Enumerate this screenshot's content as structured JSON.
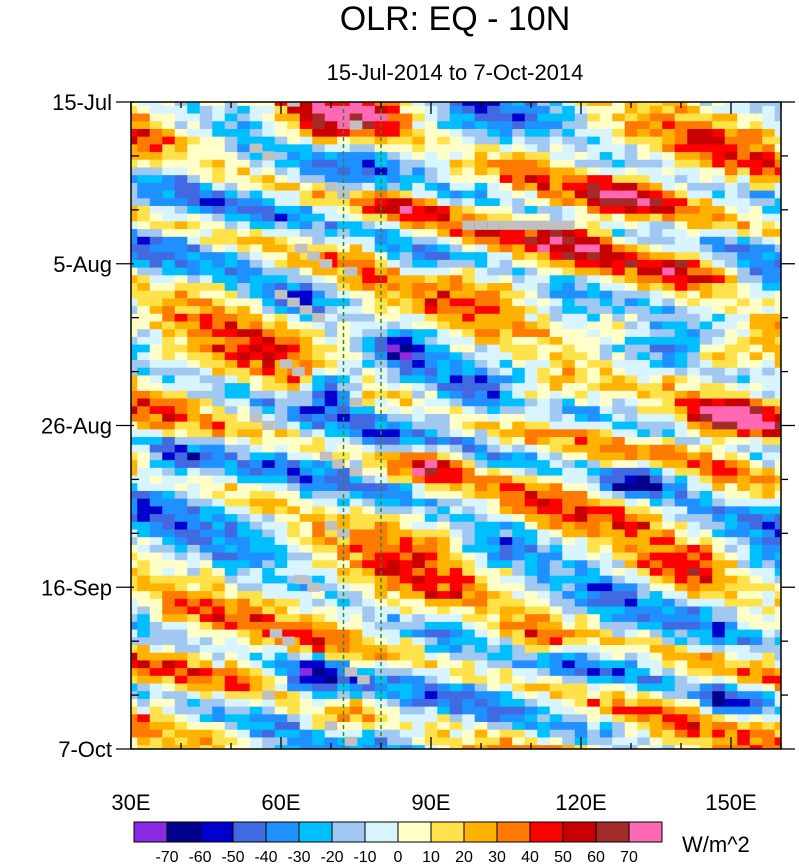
{
  "chart_data": {
    "type": "heatmap",
    "title": "OLR: EQ - 10N",
    "subtitle": "15-Jul-2014 to 7-Oct-2014",
    "x_axis": {
      "range": [
        30,
        160
      ],
      "ticks": [
        {
          "value": 30,
          "label": "30E"
        },
        {
          "value": 60,
          "label": "60E"
        },
        {
          "value": 90,
          "label": "90E"
        },
        {
          "value": 120,
          "label": "120E"
        },
        {
          "value": 150,
          "label": "150E"
        }
      ],
      "minor_step": 10
    },
    "y_axis": {
      "range_days": [
        0,
        84
      ],
      "direction": "time increases downward",
      "ticks": [
        {
          "day": 0,
          "label": "15-Jul"
        },
        {
          "day": 21,
          "label": "5-Aug"
        },
        {
          "day": 42,
          "label": "26-Aug"
        },
        {
          "day": 63,
          "label": "16-Sep"
        },
        {
          "day": 84,
          "label": "7-Oct"
        }
      ],
      "minor_step_days": 7
    },
    "reference_lines": [
      {
        "lon": 72.5,
        "style": "dashed",
        "color": "#2e8b2e"
      },
      {
        "lon": 80,
        "style": "dashed",
        "color": "#2e8b2e"
      }
    ],
    "colorbar": {
      "units": "W/m^2",
      "levels": [
        -70,
        -60,
        -50,
        -40,
        -30,
        -20,
        -10,
        0,
        10,
        20,
        30,
        40,
        50,
        60,
        70
      ],
      "colors": [
        "#8a2be2",
        "#00008b",
        "#0000cd",
        "#4169e1",
        "#1e90ff",
        "#00bfff",
        "#a0c8f0",
        "#d8f4ff",
        "#ffffc8",
        "#ffe14a",
        "#ffb300",
        "#ff7a00",
        "#ff0000",
        "#c80000",
        "#a52a2a",
        "#ff69b4"
      ]
    },
    "missing_color": "#c0c0c0",
    "field": {
      "lon_start": 30,
      "lon_step": 2.5,
      "n_lon": 53,
      "day_start": 0,
      "day_step": 1,
      "n_days": 85,
      "features": [
        {
          "day": 2,
          "lon": 76,
          "value": 55,
          "day_width": 4,
          "lon_width": 12
        },
        {
          "day": 3,
          "lon": 66,
          "value": 38,
          "day_width": 4,
          "lon_width": 10
        },
        {
          "day": 6,
          "lon": 112,
          "value": 30,
          "day_width": 3,
          "lon_width": 10
        },
        {
          "day": 13,
          "lon": 85,
          "value": 45,
          "day_width": 3,
          "lon_width": 10
        },
        {
          "day": 9,
          "lon": 40,
          "value": -30,
          "day_width": 3,
          "lon_width": 8
        },
        {
          "day": 12,
          "lon": 128,
          "value": 35,
          "day_width": 3,
          "lon_width": 10
        },
        {
          "day": 21,
          "lon": 88,
          "value": -50,
          "day_width": 3,
          "lon_width": 8
        },
        {
          "day": 22,
          "lon": 140,
          "value": 45,
          "day_width": 4,
          "lon_width": 14
        },
        {
          "day": 19,
          "lon": 118,
          "value": 30,
          "day_width": 4,
          "lon_width": 10
        },
        {
          "day": 26,
          "lon": 64,
          "value": -35,
          "day_width": 3,
          "lon_width": 10
        },
        {
          "day": 29,
          "lon": 128,
          "value": 40,
          "day_width": 3,
          "lon_width": 12
        },
        {
          "day": 32,
          "lon": 84,
          "value": -50,
          "day_width": 3,
          "lon_width": 6
        },
        {
          "day": 33,
          "lon": 148,
          "value": 50,
          "day_width": 3,
          "lon_width": 10
        },
        {
          "day": 37,
          "lon": 70,
          "value": -75,
          "day_width": 3,
          "lon_width": 6
        },
        {
          "day": 38,
          "lon": 112,
          "value": 45,
          "day_width": 3,
          "lon_width": 10
        },
        {
          "day": 41,
          "lon": 150,
          "value": 50,
          "day_width": 3,
          "lon_width": 10
        },
        {
          "day": 47,
          "lon": 90,
          "value": 55,
          "day_width": 3,
          "lon_width": 8
        },
        {
          "day": 49,
          "lon": 132,
          "value": -65,
          "day_width": 3,
          "lon_width": 10
        },
        {
          "day": 47,
          "lon": 38,
          "value": -35,
          "day_width": 3,
          "lon_width": 8
        },
        {
          "day": 58,
          "lon": 104,
          "value": -40,
          "day_width": 3,
          "lon_width": 10
        },
        {
          "day": 61,
          "lon": 140,
          "value": 45,
          "day_width": 4,
          "lon_width": 12
        },
        {
          "day": 70,
          "lon": 110,
          "value": 50,
          "day_width": 3,
          "lon_width": 12
        },
        {
          "day": 75,
          "lon": 66,
          "value": -55,
          "day_width": 3,
          "lon_width": 8
        },
        {
          "day": 78,
          "lon": 150,
          "value": -50,
          "day_width": 3,
          "lon_width": 10
        },
        {
          "day": 81,
          "lon": 70,
          "value": 45,
          "day_width": 3,
          "lon_width": 8
        }
      ],
      "missing_cells": [
        {
          "day": 0,
          "lon": 62.5
        },
        {
          "day": 3,
          "lon": 75
        },
        {
          "day": 6,
          "lon": 55
        },
        {
          "day": 7,
          "lon": 57.5
        },
        {
          "day": 11,
          "lon": 70
        },
        {
          "day": 12,
          "lon": 72.5
        },
        {
          "day": 16,
          "lon": 97.5
        },
        {
          "day": 16,
          "lon": 100
        },
        {
          "day": 16,
          "lon": 102.5
        },
        {
          "day": 16,
          "lon": 105
        },
        {
          "day": 16,
          "lon": 107.5
        },
        {
          "day": 16,
          "lon": 110
        },
        {
          "day": 16,
          "lon": 112.5
        },
        {
          "day": 16,
          "lon": 115
        },
        {
          "day": 16,
          "lon": 117.5
        },
        {
          "day": 19,
          "lon": 64
        },
        {
          "day": 20,
          "lon": 66.5
        },
        {
          "day": 21,
          "lon": 69
        },
        {
          "day": 22,
          "lon": 74
        },
        {
          "day": 25,
          "lon": 60
        },
        {
          "day": 26,
          "lon": 62.5
        },
        {
          "day": 27,
          "lon": 65
        },
        {
          "day": 28,
          "lon": 67.5
        },
        {
          "day": 34,
          "lon": 61
        },
        {
          "day": 35,
          "lon": 63.5
        },
        {
          "day": 39,
          "lon": 75
        },
        {
          "day": 41,
          "lon": 55
        },
        {
          "day": 42,
          "lon": 57.5
        },
        {
          "day": 46,
          "lon": 69
        },
        {
          "day": 47,
          "lon": 71.5
        },
        {
          "day": 48,
          "lon": 75
        },
        {
          "day": 55,
          "lon": 70
        },
        {
          "day": 56,
          "lon": 72.5
        },
        {
          "day": 62,
          "lon": 64
        },
        {
          "day": 63,
          "lon": 66.5
        },
        {
          "day": 69,
          "lon": 59
        },
        {
          "day": 70,
          "lon": 61.5
        },
        {
          "day": 74,
          "lon": 74
        },
        {
          "day": 75,
          "lon": 76.5
        },
        {
          "day": 77,
          "lon": 57.5
        },
        {
          "day": 81,
          "lon": 70
        },
        {
          "day": 83,
          "lon": 74
        }
      ]
    }
  }
}
